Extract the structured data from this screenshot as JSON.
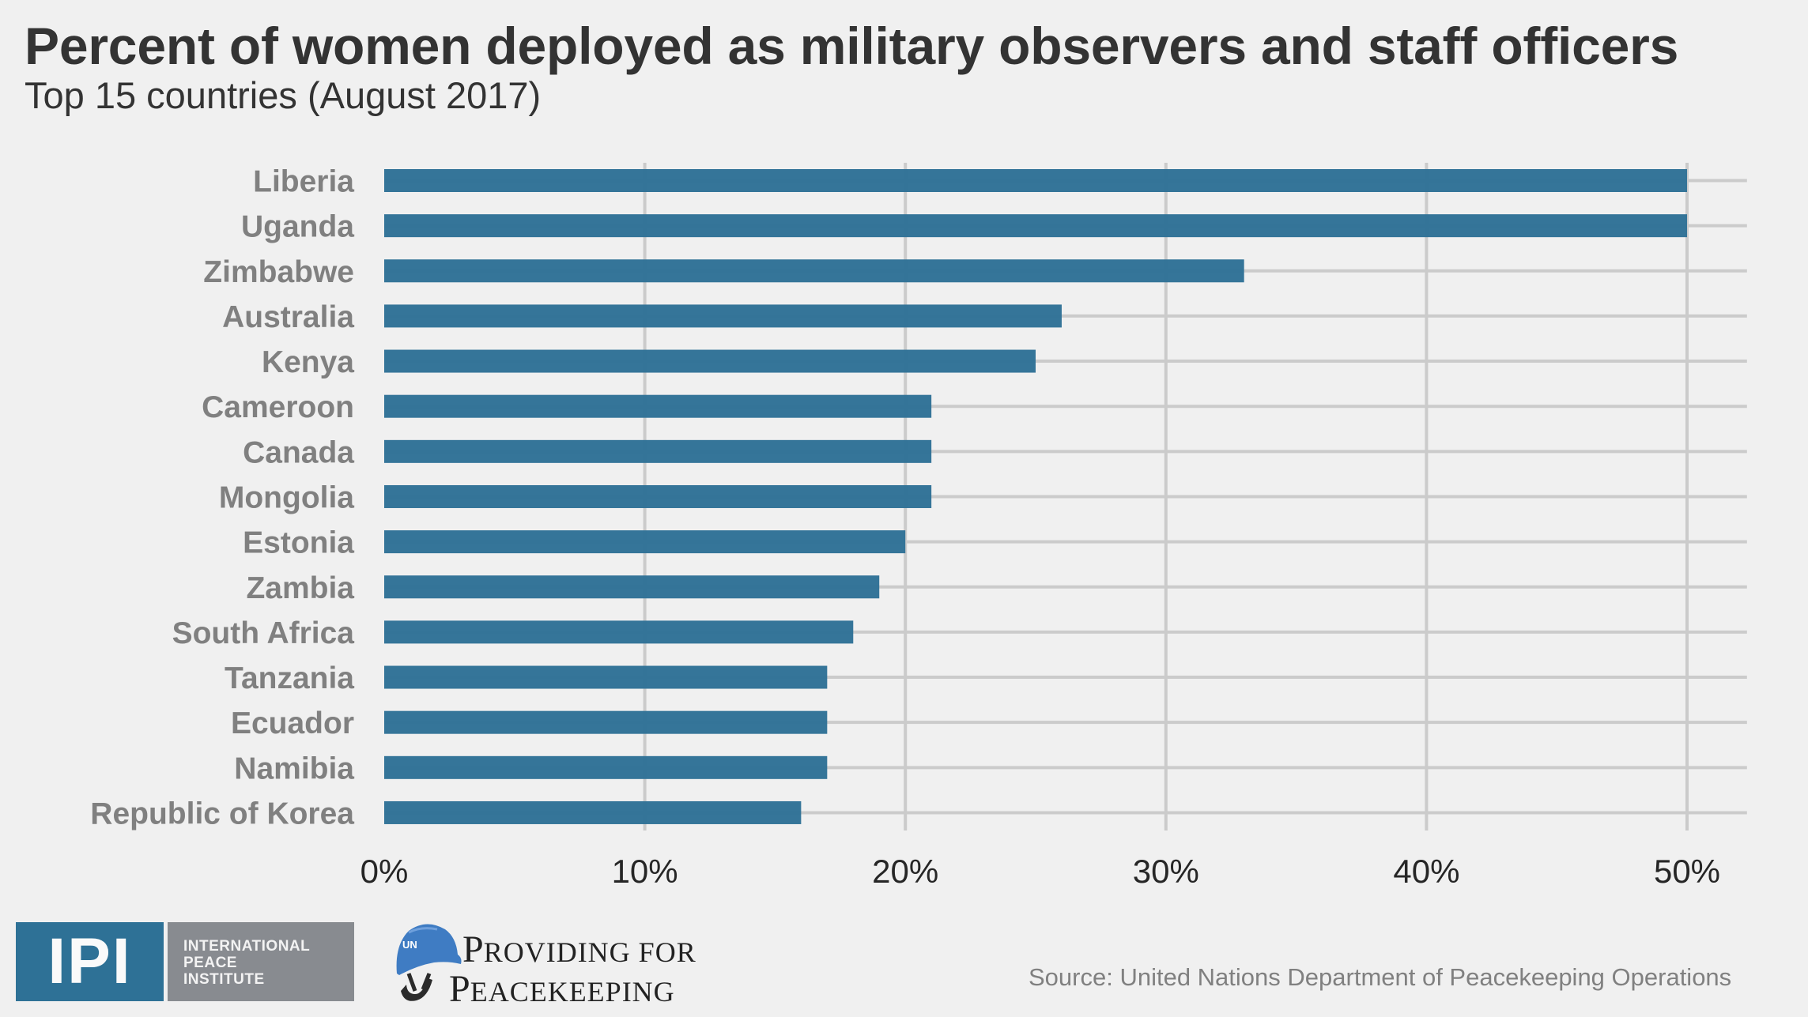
{
  "header": {
    "title": "Percent of women deployed as military observers and staff officers",
    "subtitle": "Top 15 countries (August 2017)"
  },
  "chart_data": {
    "type": "bar",
    "orientation": "horizontal",
    "title": "Percent of women deployed as military observers and staff officers",
    "subtitle": "Top 15 countries (August 2017)",
    "xlabel": "",
    "ylabel": "",
    "categories": [
      "Liberia",
      "Uganda",
      "Zimbabwe",
      "Australia",
      "Kenya",
      "Cameroon",
      "Canada",
      "Mongolia",
      "Estonia",
      "Zambia",
      "South Africa",
      "Tanzania",
      "Ecuador",
      "Namibia",
      "Republic of Korea"
    ],
    "values": [
      50,
      50,
      33,
      26,
      25,
      21,
      21,
      21,
      20,
      19,
      18,
      17,
      17,
      17,
      16
    ],
    "unit": "%",
    "xlim": [
      0,
      52.3
    ],
    "xticks": [
      0,
      10,
      20,
      30,
      40,
      50
    ],
    "xtick_labels": [
      "0%",
      "10%",
      "20%",
      "30%",
      "40%",
      "50%"
    ],
    "grid": true,
    "legend": "none",
    "bar_color": "#2e7196",
    "grid_color": "#cbcbcb"
  },
  "footer": {
    "ipi_logo": {
      "abbrev": "IPI",
      "lines": [
        "INTERNATIONAL",
        "PEACE",
        "INSTITUTE"
      ],
      "blue": "#2e7196",
      "gray": "#888b90"
    },
    "p4p_logo": {
      "helmet_text": "UN",
      "line1_initial": "P",
      "line1_rest": "ROVIDING FOR",
      "line2_initial": "P",
      "line2_rest": "EACEKEEPING",
      "icon": "un-helmet-icon"
    },
    "source": "Source: United Nations Department of Peacekeeping Operations"
  },
  "colors": {
    "background": "#f0f0f0",
    "title": "#333333",
    "axis_label": "#808080",
    "tick_label": "#262626"
  }
}
